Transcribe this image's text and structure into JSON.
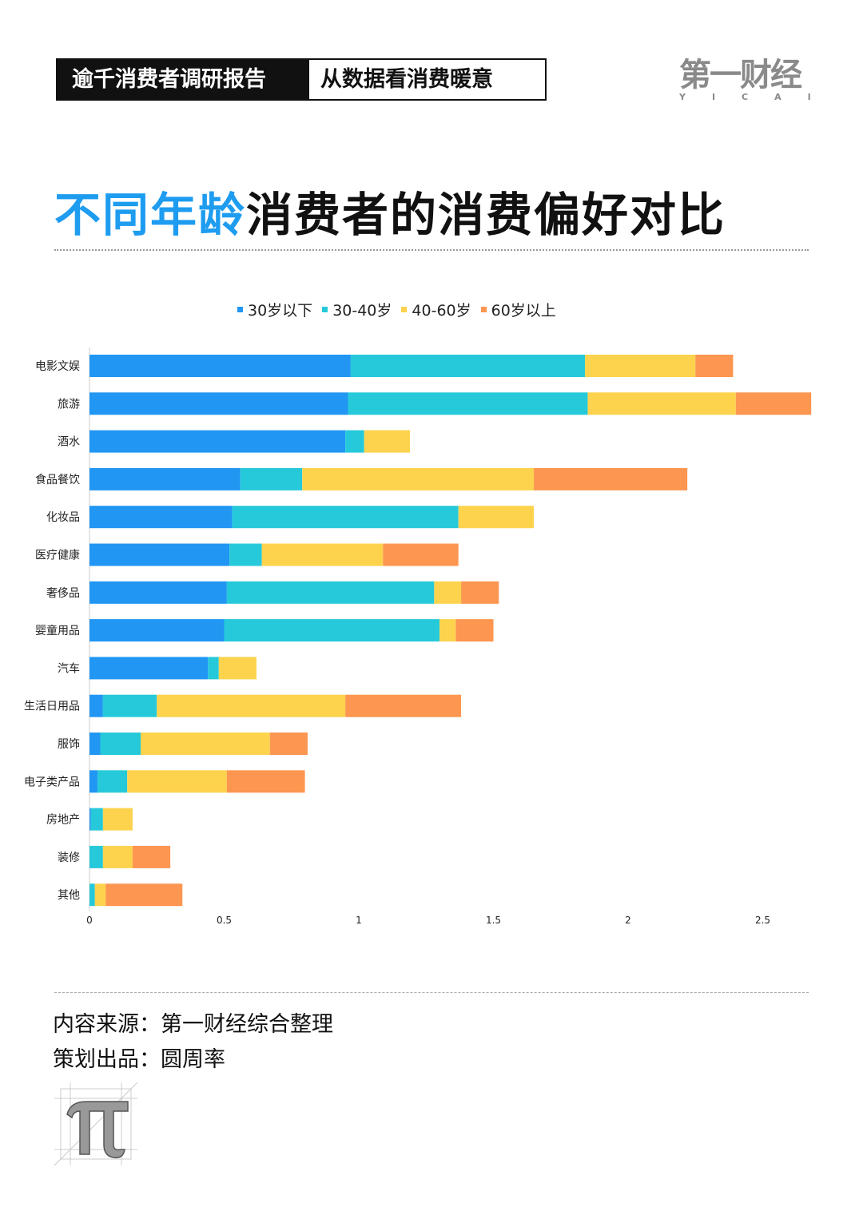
{
  "header": {
    "series_label": "逾千消费者调研报告",
    "subtitle": "从数据看消费暖意"
  },
  "logo": {
    "cn": "第一财经",
    "en": "YICAI"
  },
  "title": {
    "highlight": "不同年龄",
    "rest": "消费者的消费偏好对比"
  },
  "footer": {
    "source": "内容来源：第一财经综合整理",
    "producer": "策划出品：圆周率"
  },
  "chart_data": {
    "type": "bar",
    "orientation": "horizontal",
    "stacked": true,
    "categories": [
      "电影文娱",
      "旅游",
      "酒水",
      "食品餐饮",
      "化妆品",
      "医疗健康",
      "奢侈品",
      "婴童用品",
      "汽车",
      "生活日用品",
      "服饰",
      "电子类产品",
      "房地产",
      "装修",
      "其他"
    ],
    "series": [
      {
        "name": "30岁以下",
        "color": "#2196f3",
        "values": [
          0.97,
          0.96,
          0.95,
          0.56,
          0.53,
          0.52,
          0.51,
          0.5,
          0.44,
          0.05,
          0.04,
          0.03,
          0.005,
          0,
          0
        ]
      },
      {
        "name": "30-40岁",
        "color": "#26c9d9",
        "values": [
          0.87,
          0.89,
          0.07,
          0.23,
          0.84,
          0.12,
          0.77,
          0.8,
          0.04,
          0.2,
          0.15,
          0.11,
          0.045,
          0.05,
          0.02
        ]
      },
      {
        "name": "40-60岁",
        "color": "#fdd34d",
        "values": [
          0.41,
          0.55,
          0.17,
          0.86,
          0.28,
          0.45,
          0.1,
          0.06,
          0.14,
          0.7,
          0.48,
          0.37,
          0.11,
          0.11,
          0.04
        ]
      },
      {
        "name": "60岁以上",
        "color": "#fd9650",
        "values": [
          0.14,
          0.28,
          0,
          0.57,
          0,
          0.28,
          0.14,
          0.14,
          0,
          0.43,
          0.14,
          0.29,
          0,
          0.14,
          0.285
        ]
      }
    ],
    "xlim": [
      0,
      2.7
    ],
    "xticks": [
      "0",
      "0.5",
      "1",
      "1.5",
      "2",
      "2.5"
    ],
    "legend": "top",
    "grid": false
  }
}
